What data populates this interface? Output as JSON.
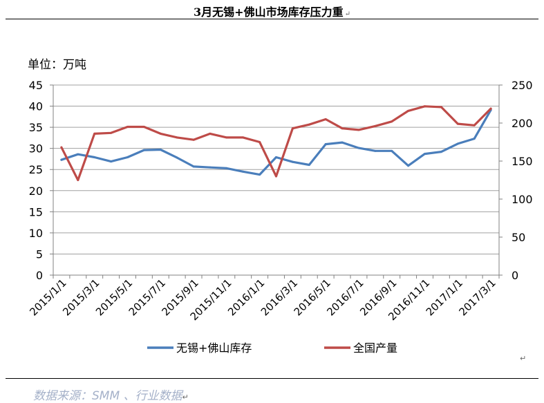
{
  "title": "3月无锡+佛山市场库存压力重",
  "unit_label": "单位：万吨",
  "source": "数据来源：SMM 、行业数据",
  "paragraph_mark": "↵",
  "colors": {
    "inventory": "#4a7ebb",
    "production": "#be4b48",
    "grid": "#a0a0a0",
    "axis": "#808080",
    "source": "#a5b1c9"
  },
  "chart_data": {
    "type": "line",
    "title": "3月无锡+佛山市场库存压力重",
    "ylabel": "单位：万吨",
    "xlabel": "",
    "grid": "horizontal",
    "legend_position": "bottom",
    "x_tick_labels": [
      "2015/1/1",
      "2015/3/1",
      "2015/5/1",
      "2015/7/1",
      "2015/9/1",
      "2015/11/1",
      "2016/1/1",
      "2016/3/1",
      "2016/5/1",
      "2016/7/1",
      "2016/9/1",
      "2016/11/1",
      "2017/1/1",
      "2017/3/1"
    ],
    "x": [
      "2015/1",
      "2015/2",
      "2015/3",
      "2015/4",
      "2015/5",
      "2015/6",
      "2015/7",
      "2015/8",
      "2015/9",
      "2015/10",
      "2015/11",
      "2015/12",
      "2016/1",
      "2016/2",
      "2016/3",
      "2016/4",
      "2016/5",
      "2016/6",
      "2016/7",
      "2016/8",
      "2016/9",
      "2016/10",
      "2016/11",
      "2016/12",
      "2017/1",
      "2017/2",
      "2017/3"
    ],
    "y_left": {
      "range": [
        0,
        45
      ],
      "ticks": [
        0,
        5,
        10,
        15,
        20,
        25,
        30,
        35,
        40,
        45
      ]
    },
    "y_right": {
      "range": [
        0,
        250
      ],
      "ticks": [
        0,
        50,
        100,
        150,
        200,
        250
      ]
    },
    "series": [
      {
        "name": "无锡+佛山库存",
        "axis": "left",
        "values": [
          27.3,
          28.6,
          27.9,
          26.9,
          27.9,
          29.6,
          29.7,
          27.8,
          25.7,
          25.5,
          25.3,
          24.5,
          23.8,
          27.9,
          26.8,
          26.1,
          31.0,
          31.4,
          30.1,
          29.4,
          29.4,
          25.9,
          28.7,
          29.2,
          31.1,
          32.3,
          39.1
        ]
      },
      {
        "name": "全国产量",
        "axis": "right",
        "values": [
          168,
          125,
          186,
          187,
          195,
          195,
          186,
          181,
          178,
          186,
          181,
          181,
          175,
          130,
          193,
          198,
          205,
          193,
          191,
          196,
          202,
          216,
          222,
          221,
          199,
          197,
          219
        ]
      }
    ]
  }
}
